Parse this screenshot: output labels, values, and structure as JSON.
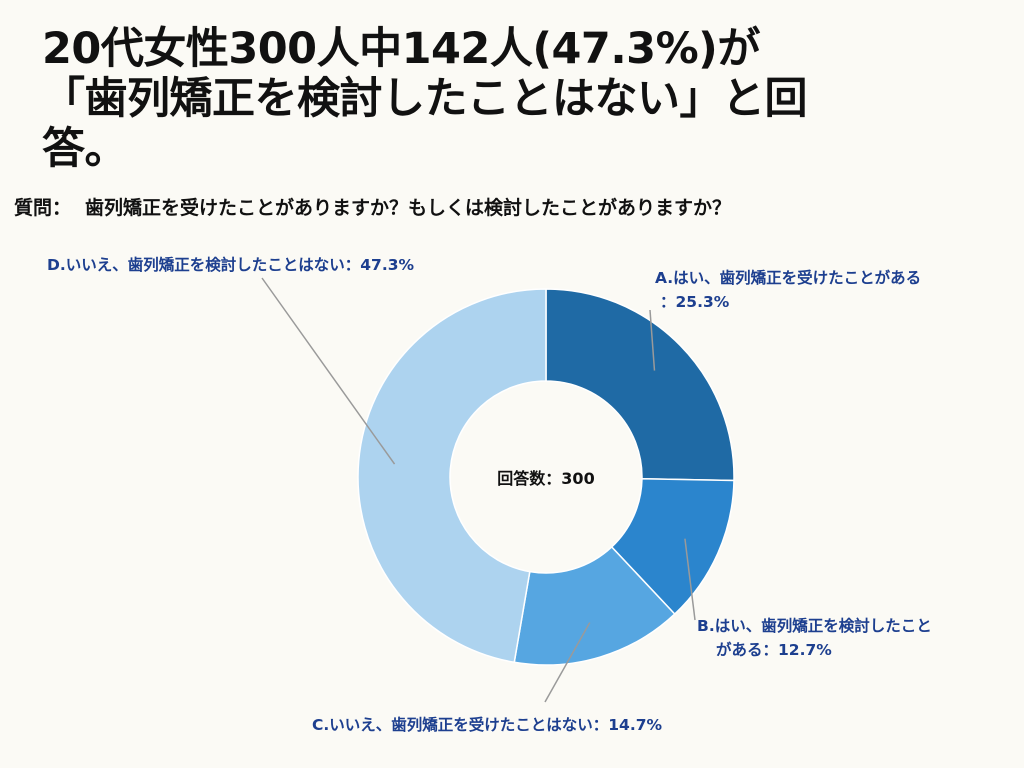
{
  "headline": {
    "line1": "20代女性300人中142人(47.3%)が",
    "line2": "「歯列矯正を検討したことはない」と回",
    "line3": "答。"
  },
  "question": {
    "label": "質問：",
    "text": "歯列矯正を受けたことがありますか？もしくは検討したことがありますか？"
  },
  "chart_data": {
    "type": "pie",
    "center_label": "回答数：300",
    "slices": [
      {
        "label": "A.はい、歯列矯正を受けたことがある",
        "value": 25.3,
        "color": "#1f6aa5",
        "label_lines": [
          "A.はい、歯列矯正を受けたことがある",
          "：25.3%"
        ]
      },
      {
        "label": "B.はい、歯列矯正を検討したことがある",
        "value": 12.7,
        "color": "#2b85cd",
        "label_lines": [
          "B.はい、歯列矯正を検討したこと",
          "がある：12.7%"
        ]
      },
      {
        "label": "C.いいえ、歯列矯正を受けたことはない",
        "value": 14.7,
        "color": "#56a6e1",
        "label_lines": [
          "C.いいえ、歯列矯正を受けたことはない：14.7%"
        ]
      },
      {
        "label": "D.いいえ、歯列矯正を検討したことはない",
        "value": 47.3,
        "color": "#add3ef",
        "label_lines": [
          "D.いいえ、歯列矯正を検討したことはない：47.3%"
        ]
      }
    ]
  }
}
